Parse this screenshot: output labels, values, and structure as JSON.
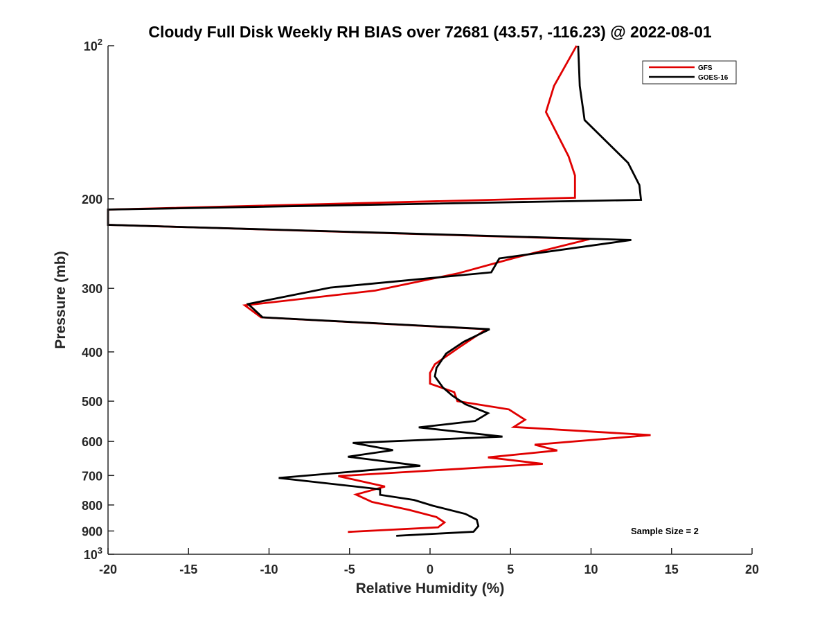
{
  "chart_data": {
    "type": "line",
    "title": "Cloudy Full Disk Weekly RH BIAS over 72681 (43.57, -116.23) @ 2022-08-01",
    "xlabel": "Relative Humidity (%)",
    "ylabel": "Pressure (mb)",
    "xlim": [
      -20,
      20
    ],
    "ylim": [
      100,
      1000
    ],
    "y_scale": "log",
    "y_reversed": true,
    "x_ticks": [
      -20,
      -15,
      -10,
      -5,
      0,
      5,
      10,
      15,
      20
    ],
    "x_tick_labels": [
      "-20",
      "-15",
      "-10",
      "-5",
      "0",
      "5",
      "10",
      "15",
      "20"
    ],
    "y_ticks": [
      100,
      200,
      300,
      400,
      500,
      600,
      700,
      800,
      900,
      1000
    ],
    "y_tick_labels": [
      {
        "base": "10",
        "exp": "2"
      },
      {
        "base": "200",
        "exp": ""
      },
      {
        "base": "300",
        "exp": ""
      },
      {
        "base": "400",
        "exp": ""
      },
      {
        "base": "500",
        "exp": ""
      },
      {
        "base": "600",
        "exp": ""
      },
      {
        "base": "700",
        "exp": ""
      },
      {
        "base": "800",
        "exp": ""
      },
      {
        "base": "900",
        "exp": ""
      },
      {
        "base": "10",
        "exp": "3"
      }
    ],
    "grid": false,
    "legend_position": "top-right",
    "annotation": "Sample Size = 2",
    "series": [
      {
        "name": "GFS",
        "color": "#e00000",
        "points": [
          [
            9.1,
            100
          ],
          [
            7.7,
            120
          ],
          [
            7.2,
            135
          ],
          [
            8.6,
            165
          ],
          [
            9.0,
            180
          ],
          [
            9.0,
            199
          ],
          [
            -20.0,
            210
          ],
          [
            -20.0,
            225
          ],
          [
            9.9,
            240
          ],
          [
            5.5,
            260
          ],
          [
            1.8,
            280
          ],
          [
            -3.4,
            303
          ],
          [
            -11.5,
            324
          ],
          [
            -10.5,
            342
          ],
          [
            3.5,
            361
          ],
          [
            1.8,
            392
          ],
          [
            0.3,
            423
          ],
          [
            0.0,
            440
          ],
          [
            0.0,
            462
          ],
          [
            1.5,
            480
          ],
          [
            1.7,
            500
          ],
          [
            4.9,
            519
          ],
          [
            5.9,
            544
          ],
          [
            5.2,
            562
          ],
          [
            13.7,
            583
          ],
          [
            6.5,
            609
          ],
          [
            7.9,
            625
          ],
          [
            3.6,
            645
          ],
          [
            7.0,
            664
          ],
          [
            -5.7,
            702
          ],
          [
            -2.8,
            736
          ],
          [
            -4.6,
            763
          ],
          [
            -3.6,
            789
          ],
          [
            -1.3,
            818
          ],
          [
            0.4,
            845
          ],
          [
            0.9,
            866
          ],
          [
            0.5,
            885
          ],
          [
            -5.1,
            904
          ]
        ]
      },
      {
        "name": "GOES-16",
        "color": "#000000",
        "points": [
          [
            9.2,
            100
          ],
          [
            9.3,
            120
          ],
          [
            9.6,
            140
          ],
          [
            12.3,
            170
          ],
          [
            13.0,
            188
          ],
          [
            13.1,
            201
          ],
          [
            -20.0,
            210
          ],
          [
            -20.0,
            225
          ],
          [
            12.5,
            241
          ],
          [
            4.3,
            262
          ],
          [
            3.8,
            279
          ],
          [
            -6.2,
            299
          ],
          [
            -11.3,
            322
          ],
          [
            -10.4,
            342
          ],
          [
            3.7,
            361
          ],
          [
            2.1,
            382
          ],
          [
            1.0,
            403
          ],
          [
            0.4,
            430
          ],
          [
            0.3,
            447
          ],
          [
            0.8,
            470
          ],
          [
            1.4,
            488
          ],
          [
            2.2,
            507
          ],
          [
            3.6,
            528
          ],
          [
            2.8,
            547
          ],
          [
            -0.7,
            563
          ],
          [
            4.5,
            587
          ],
          [
            -4.8,
            604
          ],
          [
            -2.3,
            624
          ],
          [
            -5.1,
            643
          ],
          [
            -0.6,
            670
          ],
          [
            -9.4,
            708
          ],
          [
            -3.1,
            745
          ],
          [
            -3.1,
            764
          ],
          [
            -1.0,
            782
          ],
          [
            0.2,
            803
          ],
          [
            2.2,
            833
          ],
          [
            2.9,
            855
          ],
          [
            3.0,
            880
          ],
          [
            2.7,
            903
          ],
          [
            -2.1,
            920
          ]
        ]
      }
    ]
  }
}
